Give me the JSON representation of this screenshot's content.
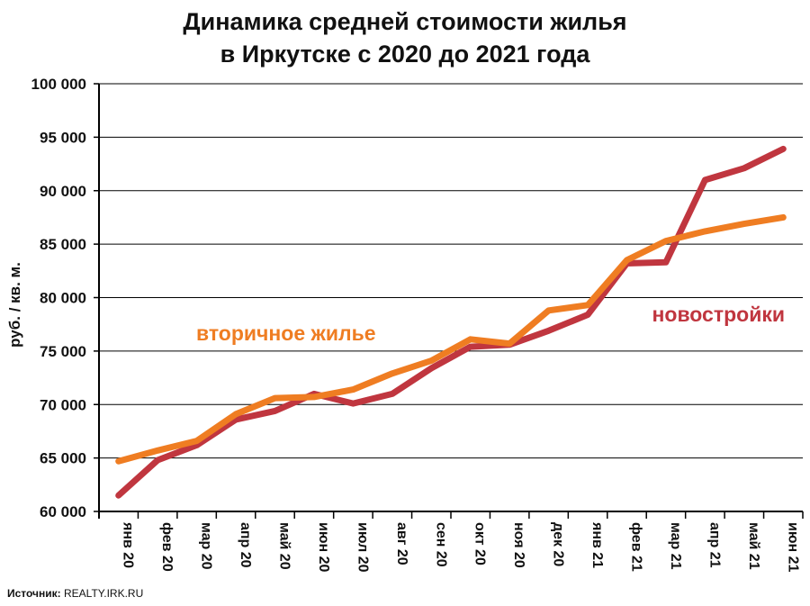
{
  "title_line1": "Динамика  средней стоимости жилья",
  "title_line2": "в Иркутске с 2020 до 2021 года",
  "source_label": "Источник:",
  "source_value": "REALTY.IRK.RU",
  "chart_data": {
    "type": "line",
    "ylabel": "руб. / кв. м.",
    "xlabel": "",
    "ylim": [
      60000,
      100000
    ],
    "yticks": [
      60000,
      65000,
      70000,
      75000,
      80000,
      85000,
      90000,
      95000,
      100000
    ],
    "ytick_labels": [
      "60 000",
      "65 000",
      "70 000",
      "75 000",
      "80 000",
      "85 000",
      "90 000",
      "95 000",
      "100 000"
    ],
    "grid": true,
    "categories": [
      "янв 20",
      "фев 20",
      "мар 20",
      "апр 20",
      "май 20",
      "июн 20",
      "июл 20",
      "авг 20",
      "сен 20",
      "окт 20",
      "ноя 20",
      "дек 20",
      "янв 21",
      "фев 21",
      "мар 21",
      "апр 21",
      "май 21",
      "июн 21"
    ],
    "series": [
      {
        "name": "новостройки",
        "color": "#c0363f",
        "values": [
          61500,
          64800,
          66200,
          68600,
          69400,
          71000,
          70100,
          71000,
          73400,
          75400,
          75600,
          76900,
          78400,
          83200,
          83300,
          91000,
          92100,
          93900
        ]
      },
      {
        "name": "вторичное жилье",
        "color": "#ef7d22",
        "values": [
          64700,
          65700,
          66600,
          69100,
          70600,
          70700,
          71400,
          72900,
          74100,
          76100,
          75700,
          78800,
          79300,
          83500,
          85300,
          86200,
          86900,
          87500
        ]
      }
    ]
  }
}
